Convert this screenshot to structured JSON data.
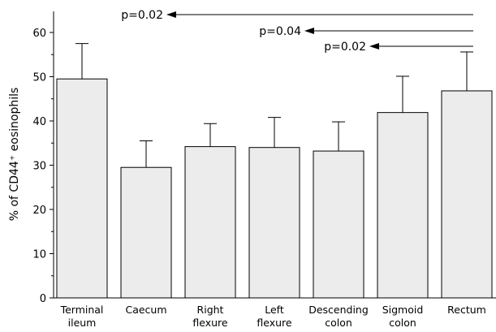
{
  "chart_data": {
    "type": "bar",
    "categories": [
      [
        "Terminal",
        "ileum"
      ],
      [
        "Caecum"
      ],
      [
        "Right",
        "flexure"
      ],
      [
        "Left",
        "flexure"
      ],
      [
        "Descending",
        "colon"
      ],
      [
        "Sigmoid",
        "colon"
      ],
      [
        "Rectum"
      ]
    ],
    "values": [
      49.5,
      29.5,
      34.2,
      34.0,
      33.2,
      41.9,
      46.8
    ],
    "errors": [
      8.0,
      6.0,
      5.2,
      6.8,
      6.6,
      8.2,
      8.8
    ],
    "ylabel": "% of CD44⁺ eosinophils",
    "ylim": [
      0,
      65
    ],
    "yticks": [
      0,
      10,
      20,
      30,
      40,
      50,
      60
    ],
    "grid": false,
    "annotations": [
      {
        "text": "p=0.02",
        "from_category": 6,
        "to_category": 0
      },
      {
        "text": "p=0.04",
        "from_category": 6,
        "to_category": 4
      },
      {
        "text": "p=0.02",
        "from_category": 6,
        "to_category": 5
      }
    ]
  }
}
